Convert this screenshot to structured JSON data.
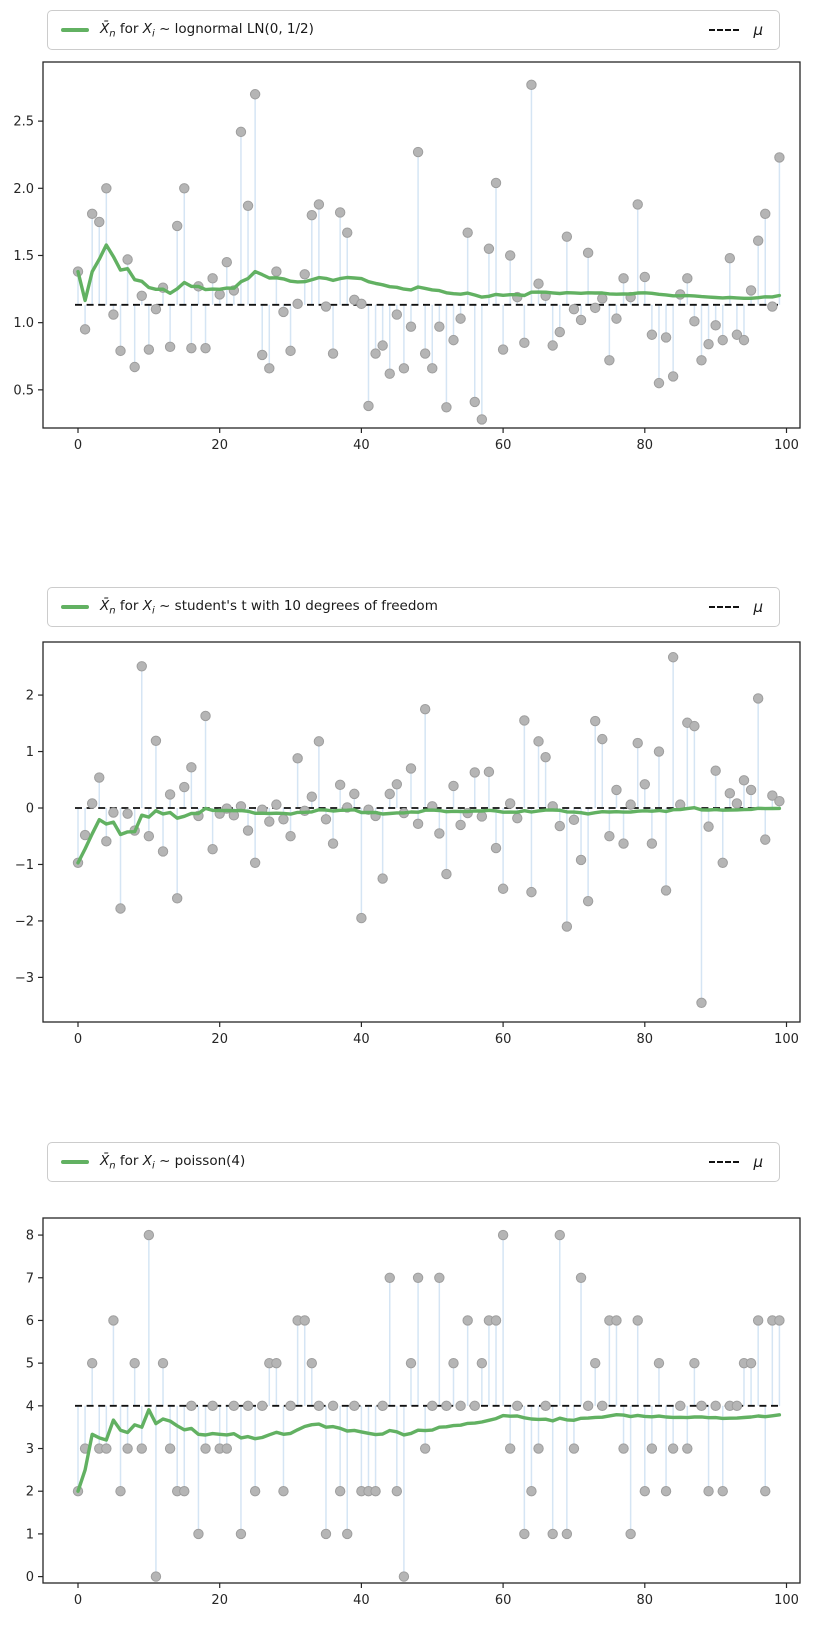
{
  "style": {
    "accent_green": "#62b162",
    "stem_color": "#d5e5f4",
    "marker_fill": "#b5b5b5",
    "marker_edge": "#9e9e9e",
    "mu_line_color": "#111111",
    "axis_color": "#262626",
    "legend_border": "#cccccc",
    "background": "#ffffff"
  },
  "chart_data": [
    {
      "type": "scatter",
      "subtype": "stem-plot with running-mean line",
      "title": "",
      "xlabel": "",
      "ylabel": "",
      "legend_position": "outside top, full-width box",
      "legend": {
        "xbar": "X̄",
        "xbar_sub": "n",
        "mid": " for ",
        "xi": "X",
        "xi_sub": "i",
        "rest": " ~ lognormal LN(0, 1/2)",
        "mu": "μ"
      },
      "mu": 1.133,
      "ylim": [
        0.216,
        2.94
      ],
      "yticks": [
        {
          "v": 0.5,
          "label": "0.5"
        },
        {
          "v": 1.0,
          "label": "1.0"
        },
        {
          "v": 1.5,
          "label": "1.5"
        },
        {
          "v": 2.0,
          "label": "2.0"
        },
        {
          "v": 2.5,
          "label": "2.5"
        }
      ],
      "xticks": [
        {
          "v": 0,
          "label": "0"
        },
        {
          "v": 20,
          "label": "20"
        },
        {
          "v": 40,
          "label": "40"
        },
        {
          "v": 60,
          "label": "60"
        },
        {
          "v": 80,
          "label": "80"
        },
        {
          "v": 100,
          "label": "100"
        }
      ],
      "x_description": "sample index n = 0..99",
      "samples": [
        1.38,
        0.95,
        1.81,
        1.75,
        2.0,
        1.06,
        0.79,
        1.47,
        0.67,
        1.2,
        0.8,
        1.1,
        1.26,
        0.82,
        1.72,
        2.0,
        0.81,
        1.27,
        0.81,
        1.33,
        1.21,
        1.45,
        1.24,
        2.42,
        1.87,
        2.7,
        0.76,
        0.66,
        1.38,
        1.08,
        0.79,
        1.14,
        1.36,
        1.8,
        1.88,
        1.12,
        0.77,
        1.82,
        1.67,
        1.17,
        1.14,
        0.38,
        0.77,
        0.83,
        0.62,
        1.06,
        0.66,
        0.97,
        2.27,
        0.77,
        0.66,
        0.97,
        0.37,
        0.87,
        1.03,
        1.67,
        0.41,
        0.28,
        1.55,
        2.04,
        0.8,
        1.5,
        1.19,
        0.85,
        2.77,
        1.29,
        1.2,
        0.83,
        0.93,
        1.64,
        1.1,
        1.02,
        1.52,
        1.11,
        1.18,
        0.72,
        1.03,
        1.33,
        1.19,
        1.88,
        1.34,
        0.91,
        0.55,
        0.89,
        0.6,
        1.21,
        1.33,
        1.01,
        0.72,
        0.84,
        0.98,
        0.87,
        1.48,
        0.91,
        0.87,
        1.24,
        1.61,
        1.81,
        1.12,
        2.23
      ],
      "running_mean": "computed cumulatively from samples"
    },
    {
      "type": "scatter",
      "subtype": "stem-plot with running-mean line",
      "title": "",
      "xlabel": "",
      "ylabel": "",
      "legend_position": "outside top, full-width box",
      "legend": {
        "xbar": "X̄",
        "xbar_sub": "n",
        "mid": " for ",
        "xi": "X",
        "xi_sub": "i",
        "rest": " ~ student's t with 10 degrees of freedom",
        "mu": "μ"
      },
      "mu": 0,
      "ylim": [
        -3.79,
        2.94
      ],
      "yticks": [
        {
          "v": -3,
          "label": "−3"
        },
        {
          "v": -2,
          "label": "−2"
        },
        {
          "v": -1,
          "label": "−1"
        },
        {
          "v": 0,
          "label": "0"
        },
        {
          "v": 1,
          "label": "1"
        },
        {
          "v": 2,
          "label": "2"
        }
      ],
      "xticks": [
        {
          "v": 0,
          "label": "0"
        },
        {
          "v": 20,
          "label": "20"
        },
        {
          "v": 40,
          "label": "40"
        },
        {
          "v": 60,
          "label": "60"
        },
        {
          "v": 80,
          "label": "80"
        },
        {
          "v": 100,
          "label": "100"
        }
      ],
      "x_description": "sample index n = 0..99",
      "samples": [
        -0.97,
        -0.48,
        0.08,
        0.54,
        -0.59,
        -0.08,
        -1.78,
        -0.1,
        -0.4,
        2.51,
        -0.5,
        1.19,
        -0.77,
        0.24,
        -1.6,
        0.37,
        0.72,
        -0.14,
        1.63,
        -0.73,
        -0.1,
        -0.01,
        -0.13,
        0.03,
        -0.4,
        -0.97,
        -0.03,
        -0.24,
        0.06,
        -0.2,
        -0.5,
        0.88,
        -0.05,
        0.2,
        1.18,
        -0.2,
        -0.63,
        0.41,
        0.01,
        0.25,
        -1.95,
        -0.03,
        -0.14,
        -1.25,
        0.25,
        0.42,
        -0.09,
        0.7,
        -0.28,
        1.75,
        0.03,
        -0.45,
        -1.17,
        0.39,
        -0.3,
        -0.09,
        0.63,
        -0.15,
        0.64,
        -0.71,
        -1.43,
        0.08,
        -0.18,
        1.55,
        -1.49,
        1.18,
        0.9,
        0.03,
        -0.32,
        -2.1,
        -0.21,
        -0.92,
        -1.65,
        1.54,
        1.22,
        -0.5,
        0.32,
        -0.63,
        0.06,
        1.15,
        0.42,
        -0.63,
        1.0,
        -1.46,
        2.67,
        0.06,
        1.51,
        1.45,
        -3.45,
        -0.33,
        0.66,
        -0.97,
        0.26,
        0.08,
        0.49,
        0.32,
        1.94,
        -0.56,
        0.22,
        0.12
      ],
      "running_mean": "computed cumulatively from samples"
    },
    {
      "type": "scatter",
      "subtype": "stem-plot with running-mean line",
      "title": "",
      "xlabel": "",
      "ylabel": "",
      "legend_position": "outside top, full-width box",
      "legend": {
        "xbar": "X̄",
        "xbar_sub": "n",
        "mid": " for ",
        "xi": "X",
        "xi_sub": "i",
        "rest": " ~ poisson(4)",
        "mu": "μ"
      },
      "mu": 4,
      "ylim": [
        -0.15,
        8.4
      ],
      "yticks": [
        {
          "v": 0,
          "label": "0"
        },
        {
          "v": 1,
          "label": "1"
        },
        {
          "v": 2,
          "label": "2"
        },
        {
          "v": 3,
          "label": "3"
        },
        {
          "v": 4,
          "label": "4"
        },
        {
          "v": 5,
          "label": "5"
        },
        {
          "v": 6,
          "label": "6"
        },
        {
          "v": 7,
          "label": "7"
        },
        {
          "v": 8,
          "label": "8"
        }
      ],
      "xticks": [
        {
          "v": 0,
          "label": "0"
        },
        {
          "v": 20,
          "label": "20"
        },
        {
          "v": 40,
          "label": "40"
        },
        {
          "v": 60,
          "label": "60"
        },
        {
          "v": 80,
          "label": "80"
        },
        {
          "v": 100,
          "label": "100"
        }
      ],
      "x_description": "sample index n = 0..99",
      "samples": [
        2,
        3,
        5,
        3,
        3,
        6,
        2,
        3,
        5,
        3,
        8,
        0,
        5,
        3,
        2,
        2,
        4,
        1,
        3,
        4,
        3,
        3,
        4,
        1,
        4,
        2,
        4,
        5,
        5,
        2,
        4,
        6,
        6,
        5,
        4,
        1,
        4,
        2,
        1,
        4,
        2,
        2,
        2,
        4,
        7,
        2,
        0,
        5,
        7,
        3,
        4,
        7,
        4,
        5,
        4,
        6,
        4,
        5,
        6,
        6,
        8,
        3,
        4,
        1,
        2,
        3,
        4,
        1,
        8,
        1,
        3,
        7,
        4,
        5,
        4,
        6,
        6,
        3,
        1,
        6,
        2,
        3,
        5,
        2,
        3,
        4,
        3,
        5,
        4,
        2,
        4,
        2,
        4,
        4,
        5,
        5,
        6,
        2,
        6,
        6
      ],
      "running_mean": "computed cumulatively from samples"
    }
  ]
}
